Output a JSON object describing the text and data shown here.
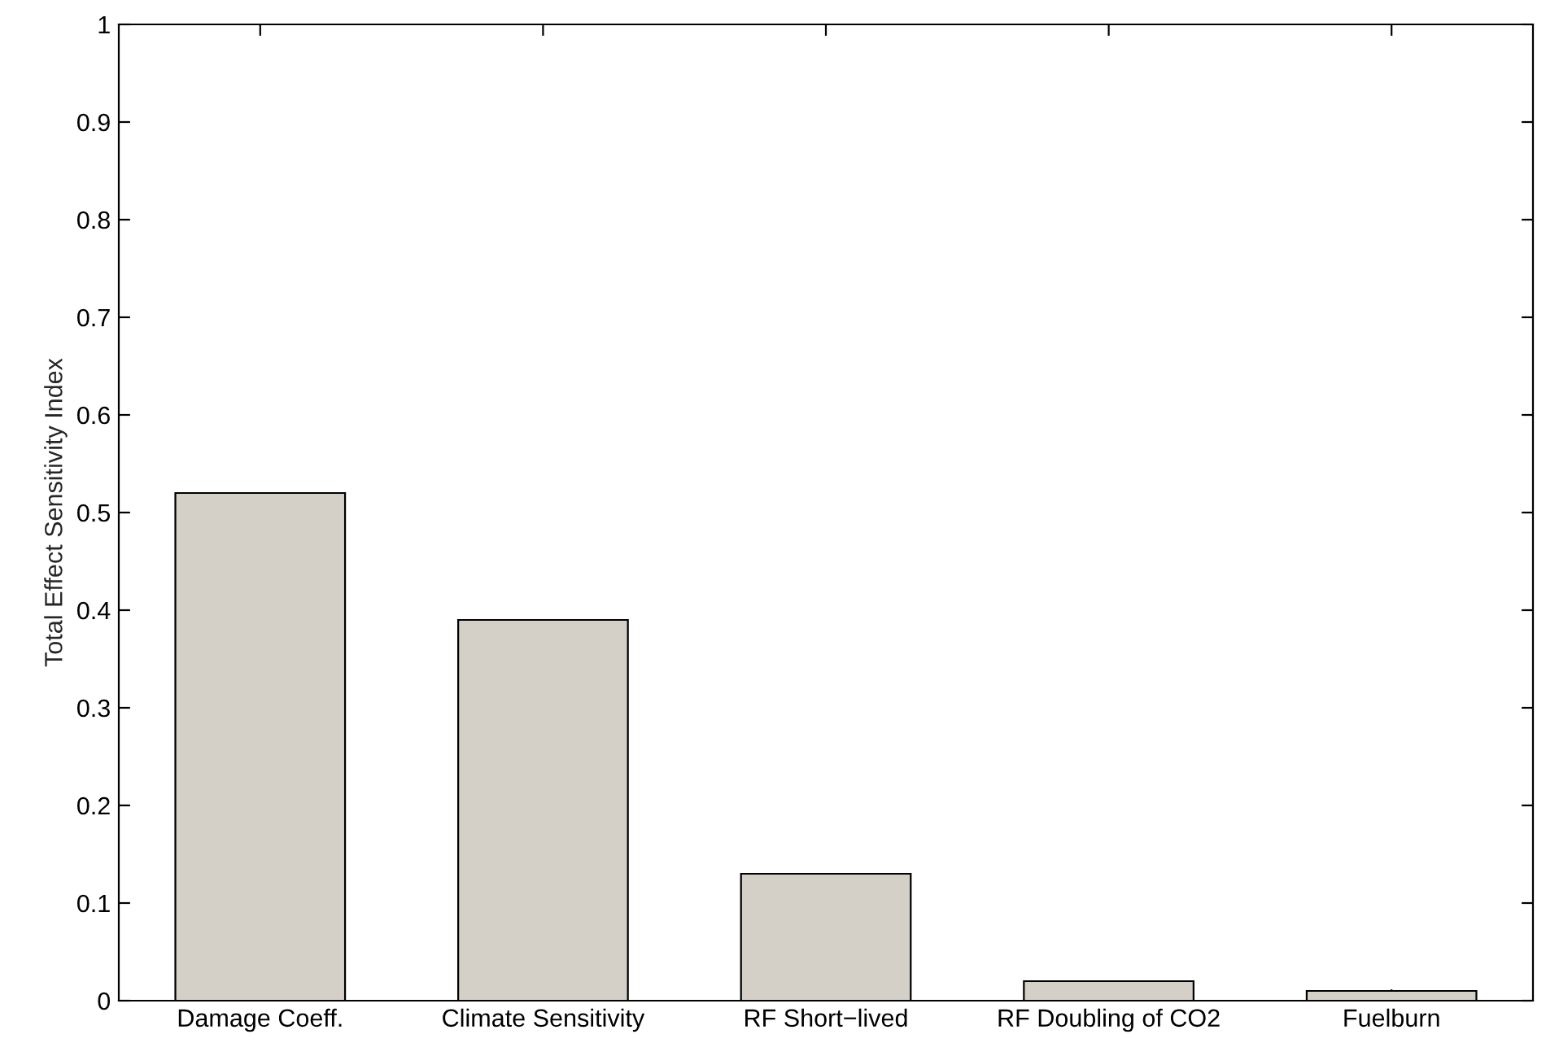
{
  "chart_data": {
    "type": "bar",
    "categories": [
      "Damage Coeff.",
      "Climate Sensitivity",
      "RF Short−lived",
      "RF Doubling of CO2",
      "Fuelburn"
    ],
    "values": [
      0.52,
      0.39,
      0.13,
      0.02,
      0.01
    ],
    "color": "#d4d0c8",
    "ylabel": "Total Effect Sensitivity Index",
    "ylim": [
      0,
      1
    ],
    "yticks": [
      0,
      0.1,
      0.2,
      0.3,
      0.4,
      0.5,
      0.6,
      0.7,
      0.8,
      0.9,
      1
    ],
    "grid": false
  }
}
